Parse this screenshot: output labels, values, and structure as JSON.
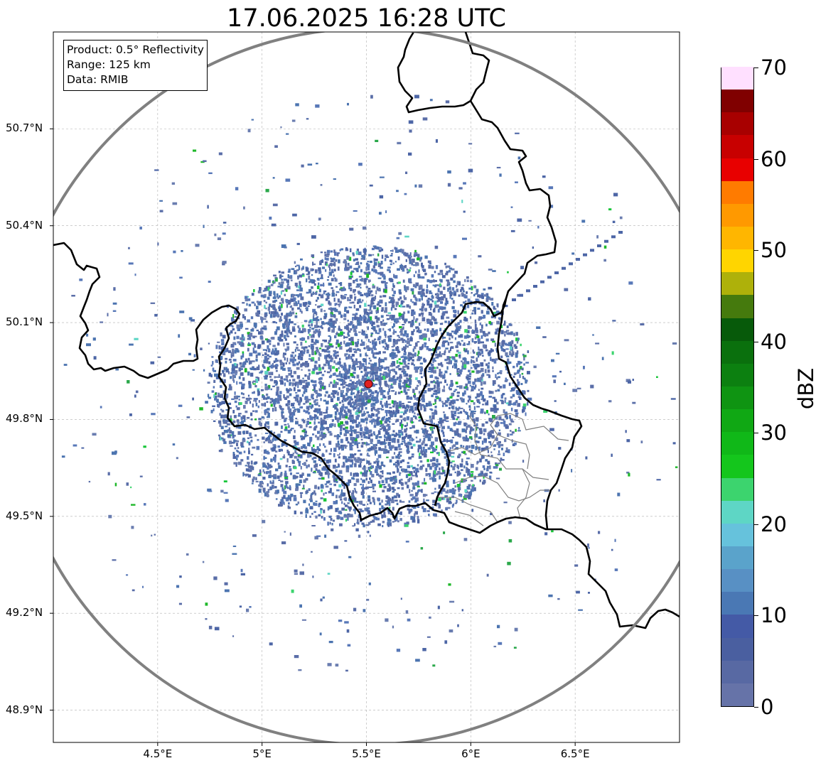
{
  "title": "17.06.2025 16:28 UTC",
  "info": {
    "product": "Product: 0.5° Reflectivity",
    "range": "Range: 125 km",
    "data": "Data: RMIB"
  },
  "axes": {
    "lat_ticks": [
      "50.7°N",
      "50.4°N",
      "50.1°N",
      "49.8°N",
      "49.5°N",
      "49.2°N",
      "48.9°N"
    ],
    "lon_ticks": [
      "4.5°E",
      "5°E",
      "5.5°E",
      "6°E",
      "6.5°E"
    ],
    "lat_values": [
      50.7,
      50.4,
      50.1,
      49.8,
      49.5,
      49.2,
      48.9
    ],
    "lon_values": [
      4.5,
      5.0,
      5.5,
      6.0,
      6.5
    ],
    "lon_range": [
      4.0,
      7.0
    ],
    "lat_range": [
      48.8,
      51.0
    ]
  },
  "radar_site": {
    "lon": 5.51,
    "lat": 49.91,
    "color": "#e02020"
  },
  "range_ring_color": "#808080",
  "colorbar": {
    "unit": "dBZ",
    "ticks": [
      "0",
      "10",
      "20",
      "30",
      "40",
      "50",
      "60",
      "70"
    ],
    "min": 0,
    "max": 70,
    "step": 2.5,
    "colors": [
      "#6673a8",
      "#5869a3",
      "#4a5fa0",
      "#445aa6",
      "#4a78b4",
      "#5890c4",
      "#5aa3cb",
      "#66c2dc",
      "#5ed6c5",
      "#3cd46e",
      "#14c61c",
      "#10b818",
      "#10a814",
      "#0f9412",
      "#0c8010",
      "#0a700d",
      "#075a0a",
      "#457a0d",
      "#aeb10a",
      "#ffd500",
      "#ffb600",
      "#ff9900",
      "#ff7b00",
      "#e80000",
      "#c80000",
      "#a80000",
      "#800000",
      "#ffe0ff",
      "#ffb0ff",
      "#ff70ff",
      "#ee3ae8"
    ]
  }
}
